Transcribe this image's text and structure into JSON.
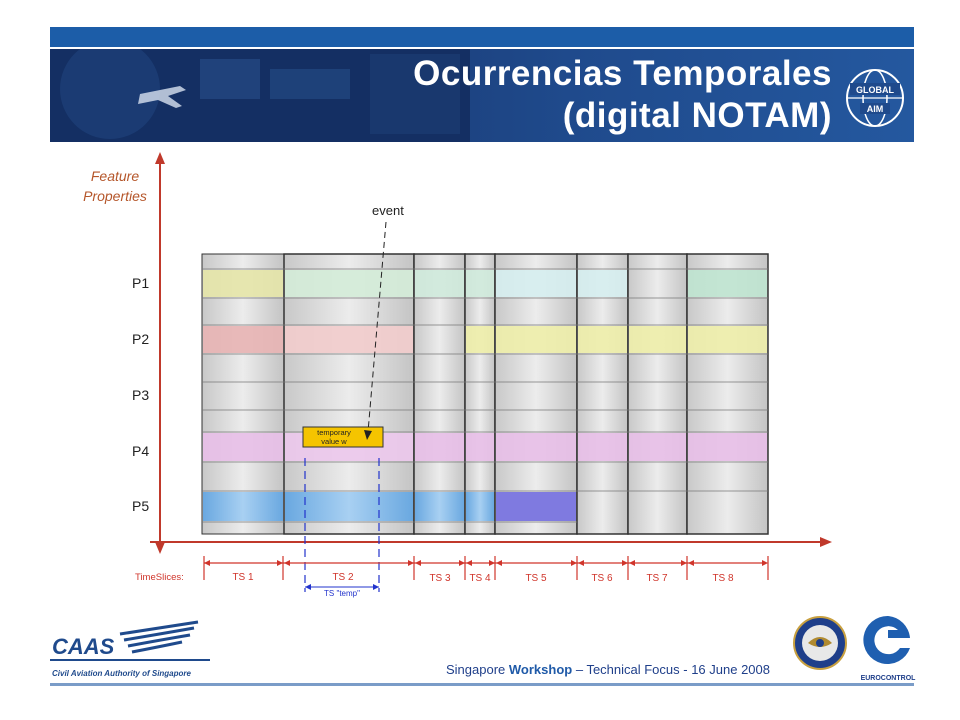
{
  "header": {
    "title_line1": "Ocurrencias Temporales",
    "title_line2": "(digital NOTAM)",
    "logo_text_top": "GLOBAL",
    "logo_text_bottom": "AIM"
  },
  "diagram": {
    "y_axis_label_line1": "Feature",
    "y_axis_label_line2": "Properties",
    "properties": [
      "P1",
      "P2",
      "P3",
      "P4",
      "P5"
    ],
    "event_label": "event",
    "temp_box_line1": "temporary",
    "temp_box_line2": "value w",
    "timeslices_label": "TimeSlices:",
    "timeslices": [
      "TS 1",
      "TS 2",
      "TS 3",
      "TS 4",
      "TS 5",
      "TS 6",
      "TS 7",
      "TS 8"
    ],
    "temp_timeslice": "TS \"temp\"",
    "colors": {
      "axis": "#c0392b",
      "temp_box": "#f5c400",
      "temp_marker": "#2233cc",
      "p1": "#e8e8b0",
      "p2": "#f0c8c8",
      "p4": "#ecc4ec",
      "p5": "#8cc0ec"
    }
  },
  "footer": {
    "caas_text": "CAAS",
    "caas_caption": "Civil Aviation Authority of Singapore",
    "event_prefix": "Singapore ",
    "event_bold": "Workshop",
    "event_suffix": " – Technical Focus - 16 June 2008",
    "euro_label": "EUROCONTROL"
  }
}
